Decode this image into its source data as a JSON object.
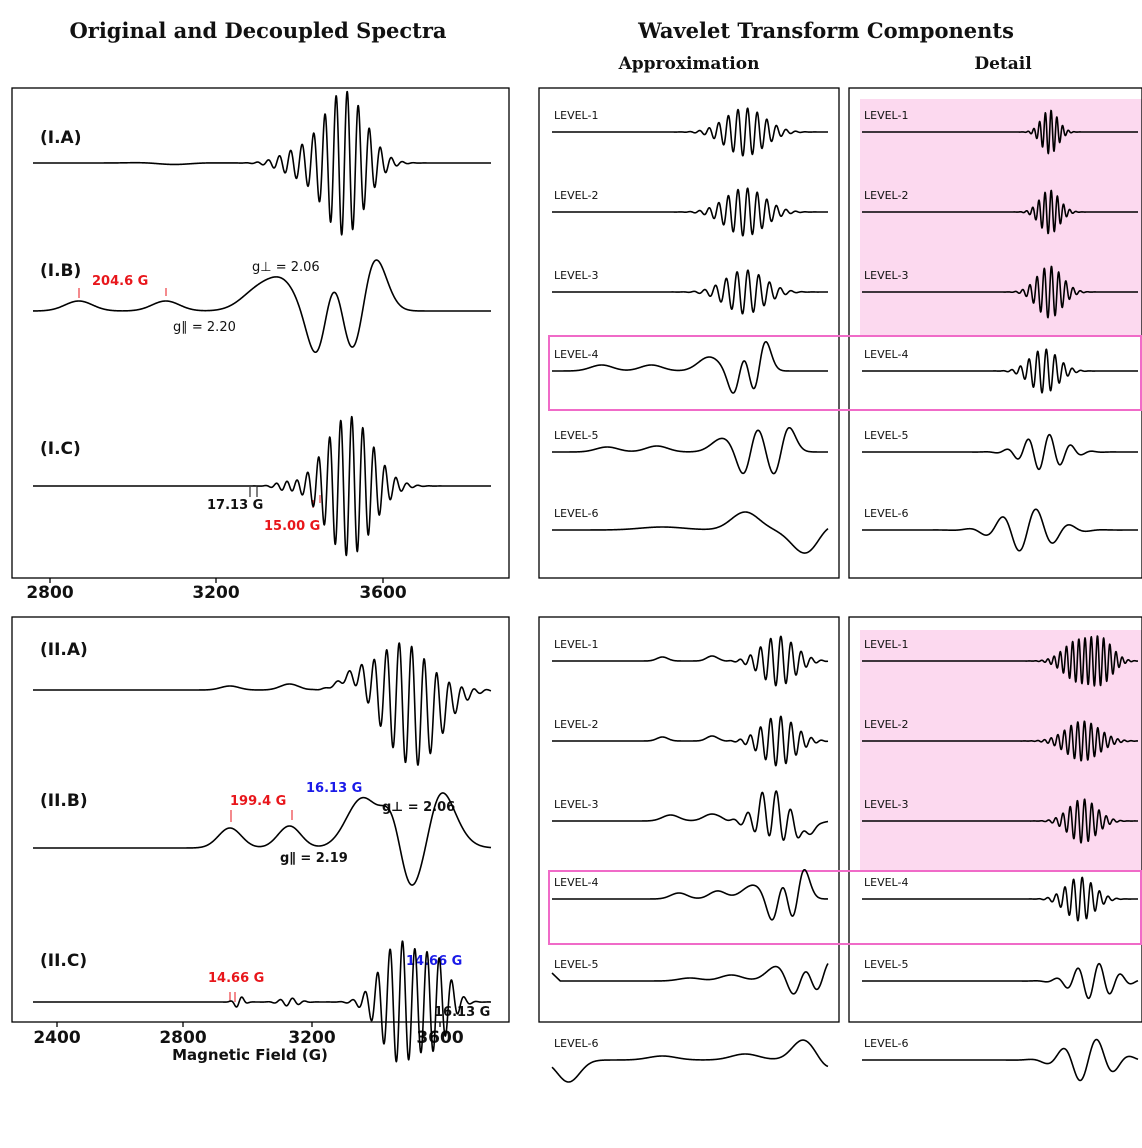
{
  "titles": {
    "left": "Original and Decoupled Spectra",
    "right": "Wavelet Transform Components",
    "approx": "Approximation",
    "detail": "Detail"
  },
  "colors": {
    "red": "#e8161b",
    "blue": "#1a1ae8",
    "pink_box": "#f06bc8",
    "pink_fill": "#fcd9ef"
  },
  "left_top": {
    "panels": [
      "(I.A)",
      "(I.B)",
      "(I.C)"
    ],
    "ticks": [
      "2800",
      "3200",
      "3600"
    ],
    "ann": {
      "split": "204.6 G",
      "gperp": "g⊥ = 2.06",
      "gpar": "g∥ = 2.20",
      "black_split": "17.13 G",
      "red_split": "15.00 G"
    }
  },
  "left_bottom": {
    "panels": [
      "(II.A)",
      "(II.B)",
      "(II.C)"
    ],
    "ticks": [
      "2400",
      "2800",
      "3200",
      "3600"
    ],
    "xlabel": "Magnetic Field (G)",
    "ann": {
      "split": "199.4 G",
      "blue_top": "16.13 G",
      "gperp": "g⊥ = 2.06",
      "gpar": "g∥ = 2.19",
      "red_c": "14.66 G",
      "blue_c": "14.66 G",
      "black_c": "16.13 G"
    }
  },
  "levels": [
    "LEVEL-1",
    "LEVEL-2",
    "LEVEL-3",
    "LEVEL-4",
    "LEVEL-5",
    "LEVEL-6"
  ],
  "chart_data": [
    {
      "type": "line",
      "title": "Original and Decoupled Spectra",
      "xlabel": "Magnetic Field (G)",
      "xticks": [
        2800,
        3200,
        3600
      ],
      "series": [
        {
          "name": "(I.A)"
        },
        {
          "name": "(I.B)"
        },
        {
          "name": "(I.C)"
        }
      ]
    },
    {
      "type": "line",
      "xlabel": "Magnetic Field (G)",
      "xticks": [
        2400,
        2800,
        3200,
        3600
      ],
      "series": [
        {
          "name": "(II.A)"
        },
        {
          "name": "(II.B)"
        },
        {
          "name": "(II.C)"
        }
      ]
    },
    {
      "type": "line",
      "title": "Wavelet Transform Components",
      "columns": [
        "Approximation",
        "Detail"
      ],
      "levels": [
        "LEVEL-1",
        "LEVEL-2",
        "LEVEL-3",
        "LEVEL-4",
        "LEVEL-5",
        "LEVEL-6"
      ],
      "highlighted": [
        "Detail LEVEL-1",
        "Detail LEVEL-2",
        "Detail LEVEL-3",
        "LEVEL-4"
      ]
    }
  ]
}
